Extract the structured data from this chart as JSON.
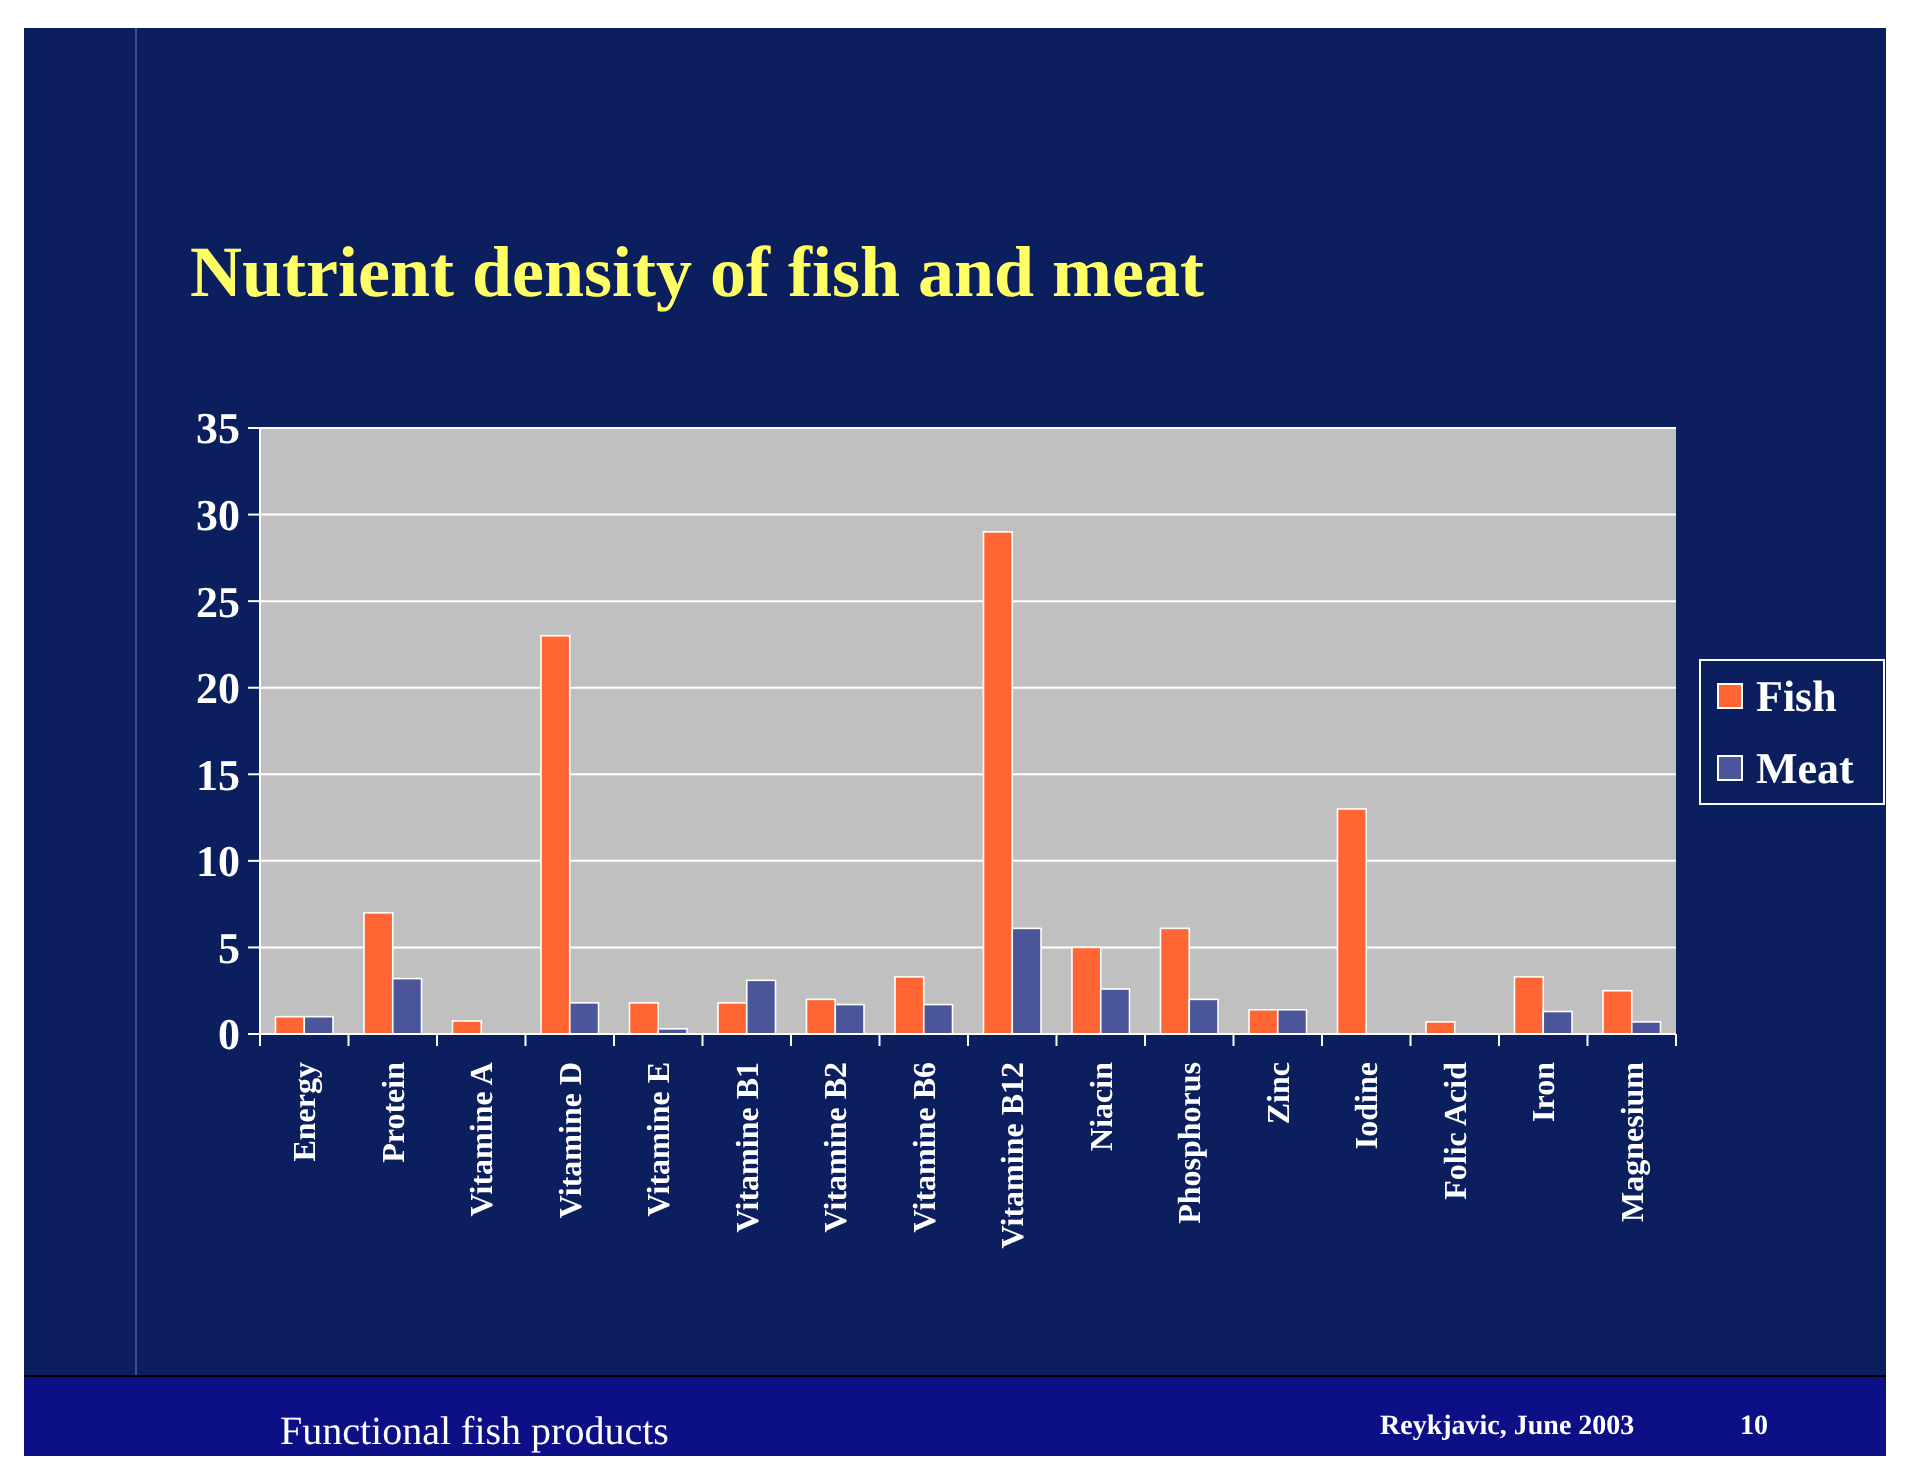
{
  "chart_data": {
    "type": "bar",
    "title": "Nutrient density of fish and meat",
    "categories": [
      "Energy",
      "Protein",
      "Vitamine A",
      "Vitamine D",
      "Vitamine E",
      "Vitamine B1",
      "Vitamine B2",
      "Vitamine B6",
      "Vitamine B12",
      "Niacin",
      "Phosphorus",
      "Zinc",
      "Iodine",
      "Folic Acid",
      "Iron",
      "Magnesium"
    ],
    "series": [
      {
        "name": "Fish",
        "color": "#ff6633",
        "values": [
          1.0,
          7.0,
          0.75,
          23,
          1.8,
          1.8,
          2.0,
          3.3,
          29,
          5.0,
          6.1,
          1.4,
          13,
          0.7,
          3.3,
          2.5
        ]
      },
      {
        "name": "Meat",
        "color": "#4a5699",
        "values": [
          1.0,
          3.2,
          0,
          1.8,
          0.3,
          3.1,
          1.7,
          1.7,
          6.1,
          2.6,
          2.0,
          1.4,
          0,
          0,
          1.3,
          0.7
        ]
      }
    ],
    "ylim": [
      0,
      35
    ],
    "yticks": [
      0,
      5,
      10,
      15,
      20,
      25,
      30,
      35
    ],
    "grid": "y",
    "legend": "right",
    "annotations": [
      "Functional fish products",
      "Reykjavic, June 2003",
      "10"
    ]
  }
}
